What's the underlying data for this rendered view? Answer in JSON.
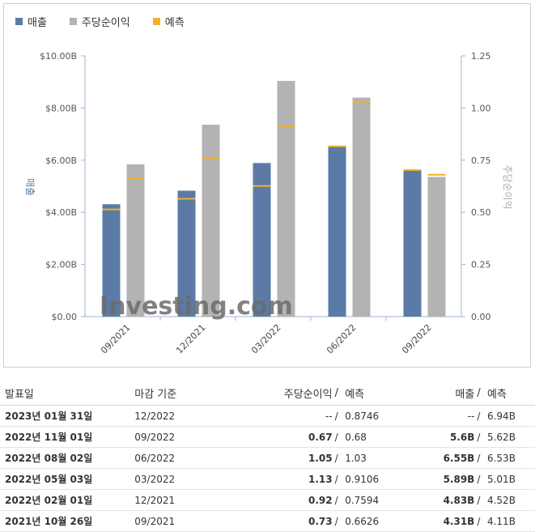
{
  "legend": [
    {
      "label": "매출",
      "color": "#5b7ba6"
    },
    {
      "label": "주당순이익",
      "color": "#b3b3b3"
    },
    {
      "label": "예측",
      "color": "#f0b22a"
    }
  ],
  "chart_data": {
    "type": "bar",
    "categories": [
      "09/2021",
      "12/2021",
      "03/2022",
      "06/2022",
      "09/2022"
    ],
    "series": [
      {
        "name": "매출",
        "axis": "left",
        "color": "#5b7ba6",
        "values": [
          4.31,
          4.83,
          5.89,
          6.55,
          5.6
        ],
        "forecast": [
          4.11,
          4.52,
          5.01,
          6.53,
          5.62
        ]
      },
      {
        "name": "주당순이익",
        "axis": "right",
        "color": "#b3b3b3",
        "values": [
          0.73,
          0.92,
          1.13,
          1.05,
          0.67
        ],
        "forecast": [
          0.6626,
          0.7594,
          0.9106,
          1.03,
          0.68
        ]
      }
    ],
    "forecast_color": "#f0b22a",
    "ylabel_left": "매출",
    "ylabel_right": "주당순이익",
    "yticks_left": [
      "$0.00",
      "$2.00B",
      "$4.00B",
      "$6.00B",
      "$8.00B",
      "$10.00B"
    ],
    "yticks_right": [
      "0.00",
      "0.25",
      "0.50",
      "0.75",
      "1.00",
      "1.25"
    ],
    "ylim_left": [
      0,
      10
    ],
    "ylim_right": [
      0,
      1.25
    ],
    "watermark": "Investing.com"
  },
  "table": {
    "headers": {
      "date": "발표일",
      "period": "마감 기준",
      "eps": "주당순이익",
      "eps_forecast": "예측",
      "revenue": "매출",
      "revenue_forecast": "예측",
      "slash": "/"
    },
    "rows": [
      {
        "date": "2023년 01월 31일",
        "period": "12/2022",
        "eps": "--",
        "eps_forecast": "0.8746",
        "revenue": "--",
        "revenue_forecast": "6.94B",
        "eps_class": "flat",
        "rev_class": "flat"
      },
      {
        "date": "2022년 11월 01일",
        "period": "09/2022",
        "eps": "0.67",
        "eps_forecast": "0.68",
        "revenue": "5.6B",
        "revenue_forecast": "5.62B",
        "eps_class": "down",
        "rev_class": "down"
      },
      {
        "date": "2022년 08월 02일",
        "period": "06/2022",
        "eps": "1.05",
        "eps_forecast": "1.03",
        "revenue": "6.55B",
        "revenue_forecast": "6.53B",
        "eps_class": "up",
        "rev_class": "up"
      },
      {
        "date": "2022년 05월 03일",
        "period": "03/2022",
        "eps": "1.13",
        "eps_forecast": "0.9106",
        "revenue": "5.89B",
        "revenue_forecast": "5.01B",
        "eps_class": "up",
        "rev_class": "up"
      },
      {
        "date": "2022년 02월 01일",
        "period": "12/2021",
        "eps": "0.92",
        "eps_forecast": "0.7594",
        "revenue": "4.83B",
        "revenue_forecast": "4.52B",
        "eps_class": "up",
        "rev_class": "up"
      },
      {
        "date": "2021년 10월 26일",
        "period": "09/2021",
        "eps": "0.73",
        "eps_forecast": "0.6626",
        "revenue": "4.31B",
        "revenue_forecast": "4.11B",
        "eps_class": "up",
        "rev_class": "up"
      }
    ]
  }
}
